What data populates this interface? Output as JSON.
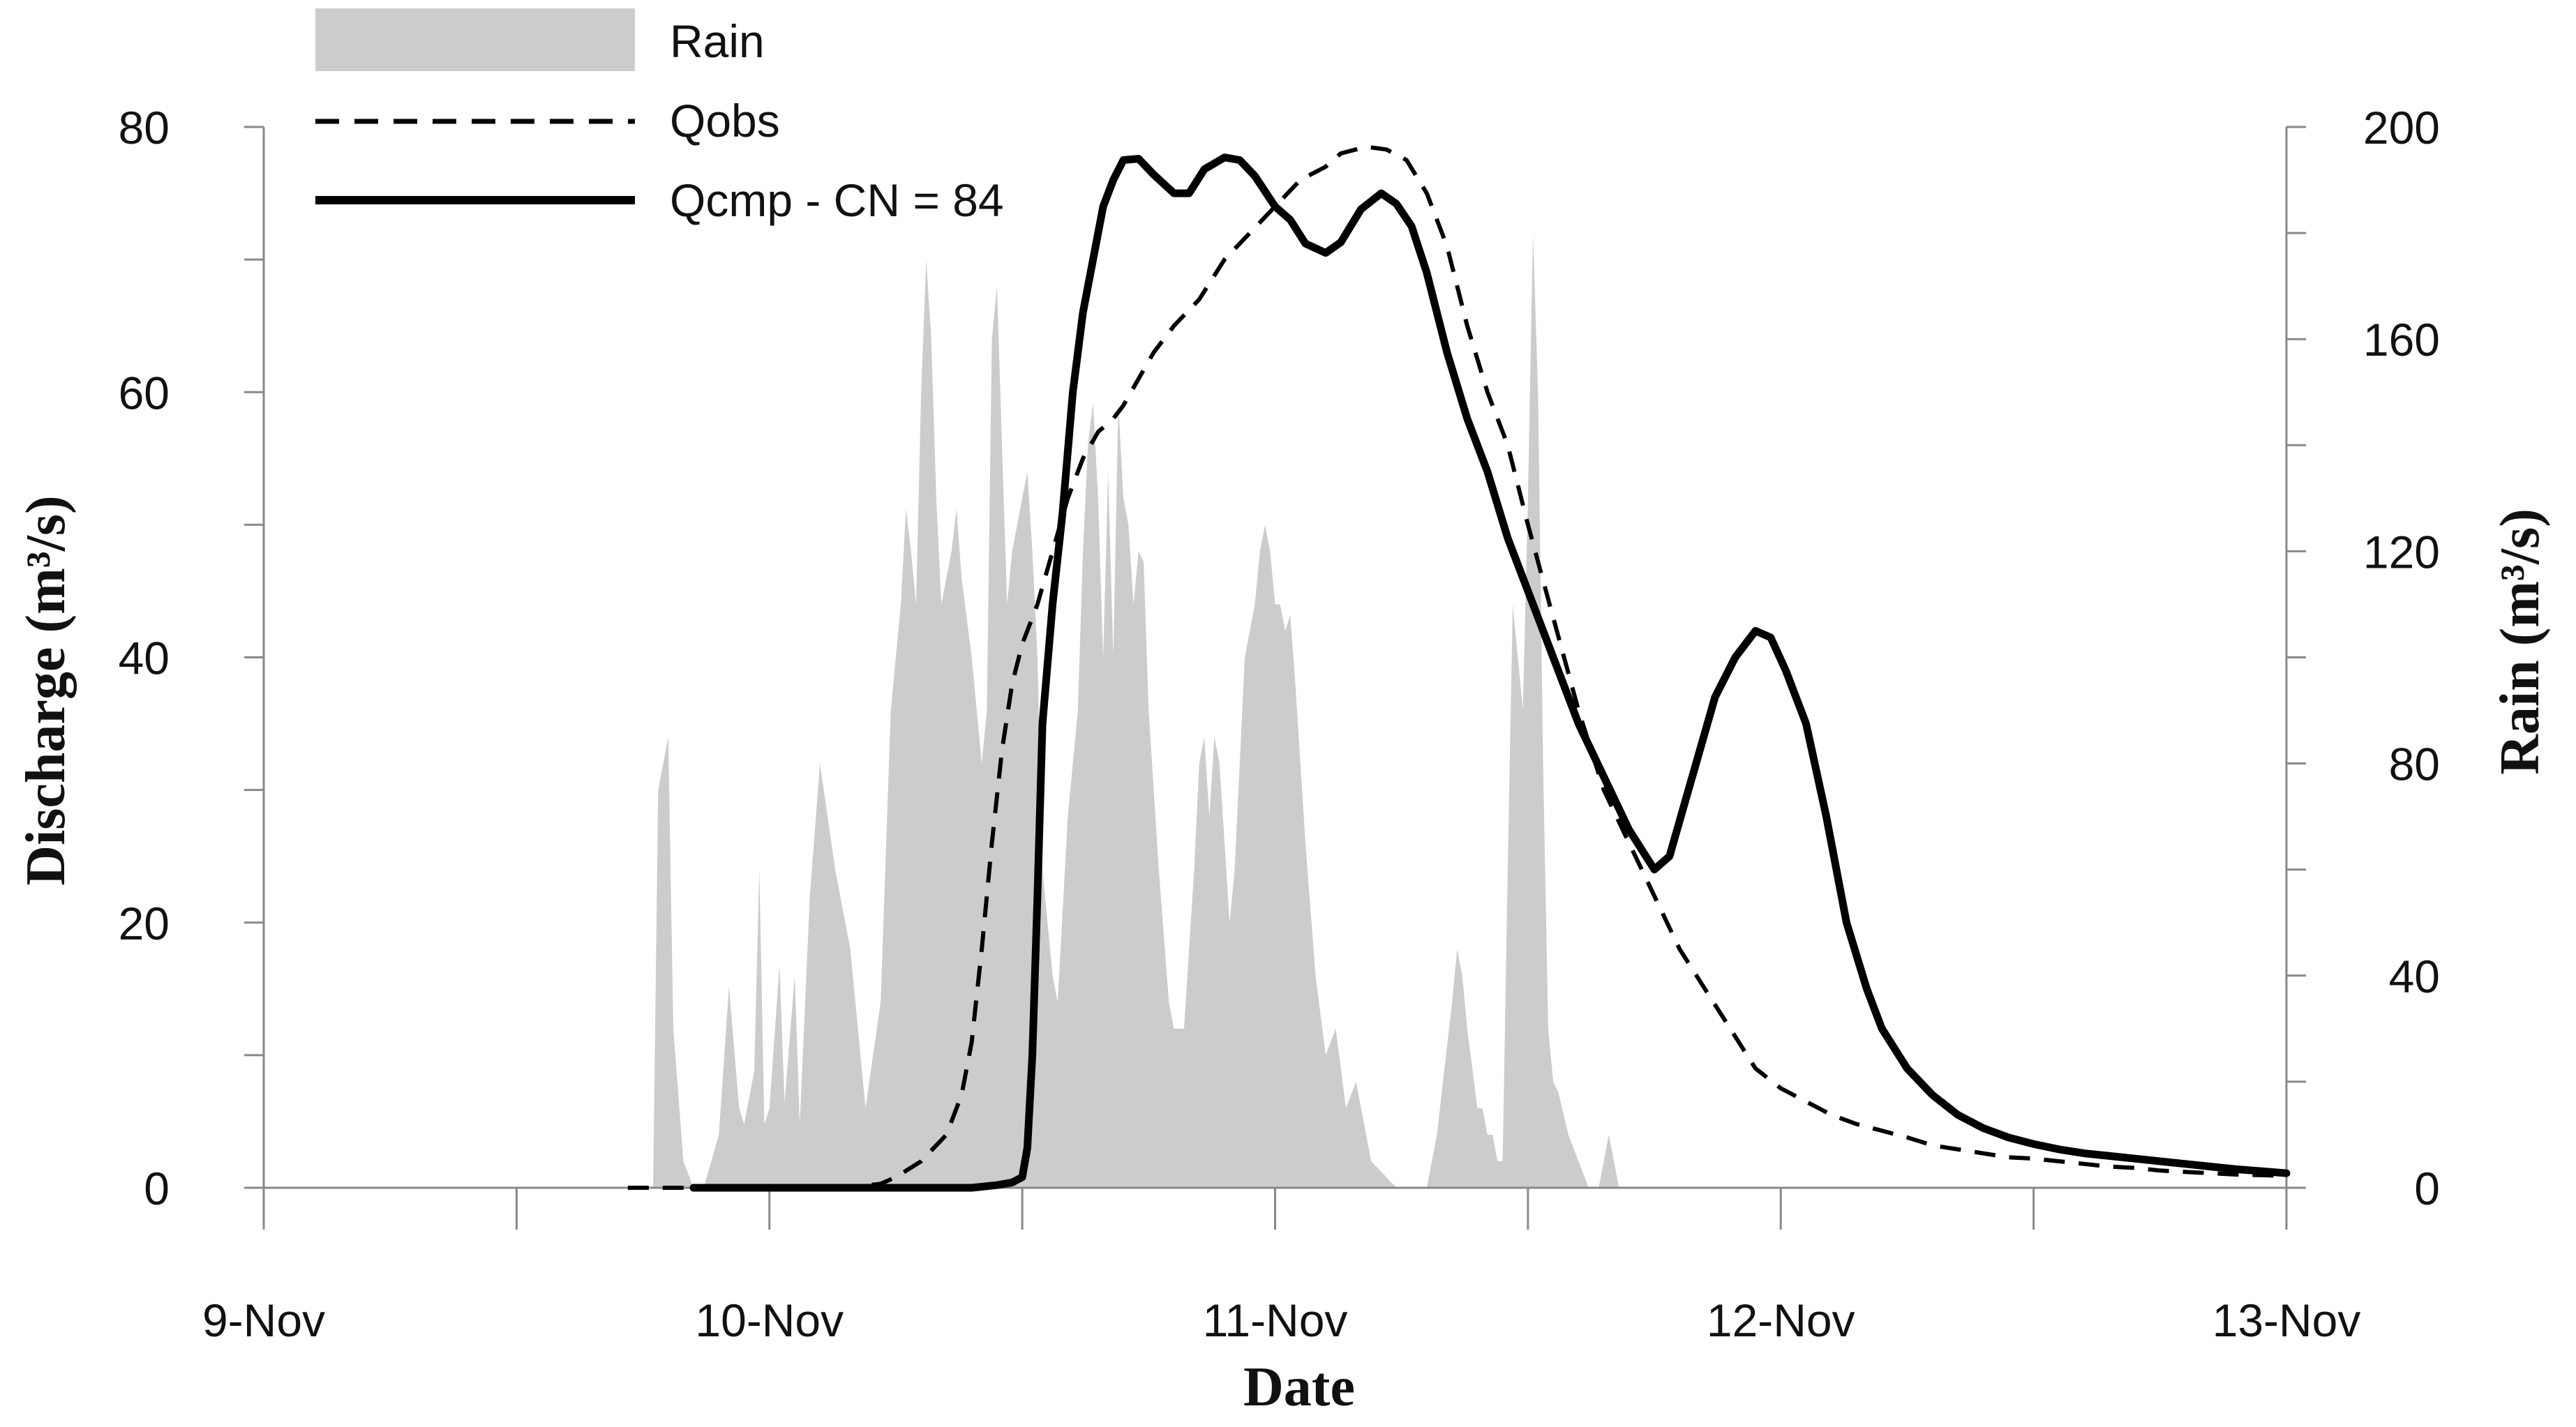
{
  "chart_data": {
    "type": "line",
    "xlabel": "Date",
    "ylabel": "Discharge",
    "ylabel_unit": "(m³/s)",
    "y2label": "Rain",
    "y2label_unit": "(m³/s)",
    "x_ticks": [
      {
        "value": 0,
        "label": "9-Nov"
      },
      {
        "value": 1,
        "label": "10-Nov"
      },
      {
        "value": 2,
        "label": "11-Nov"
      },
      {
        "value": 3,
        "label": "12-Nov"
      },
      {
        "value": 4,
        "label": "13-Nov"
      }
    ],
    "xlim": [
      0,
      4
    ],
    "ylim": [
      0,
      80
    ],
    "y_ticks": [
      0,
      20,
      40,
      60,
      80
    ],
    "y2lim": [
      0,
      200
    ],
    "y2_ticks": [
      0,
      40,
      80,
      120,
      160,
      200
    ],
    "legend_position": "top-left",
    "colors": {
      "rain": "#cccccc",
      "qobs": "#000000",
      "qcmp": "#000000"
    },
    "series": [
      {
        "name": "Rain",
        "kind": "area",
        "axis": "right",
        "points": [
          [
            0.77,
            0
          ],
          [
            0.78,
            75
          ],
          [
            0.8,
            85
          ],
          [
            0.81,
            30
          ],
          [
            0.83,
            5
          ],
          [
            0.85,
            0
          ],
          [
            0.87,
            0
          ],
          [
            0.9,
            10
          ],
          [
            0.92,
            38
          ],
          [
            0.94,
            15
          ],
          [
            0.95,
            12
          ],
          [
            0.97,
            22
          ],
          [
            0.98,
            60
          ],
          [
            0.99,
            12
          ],
          [
            1.0,
            15
          ],
          [
            1.02,
            42
          ],
          [
            1.03,
            16
          ],
          [
            1.05,
            40
          ],
          [
            1.06,
            12
          ],
          [
            1.08,
            55
          ],
          [
            1.1,
            80
          ],
          [
            1.13,
            60
          ],
          [
            1.16,
            45
          ],
          [
            1.19,
            15
          ],
          [
            1.22,
            35
          ],
          [
            1.24,
            90
          ],
          [
            1.26,
            110
          ],
          [
            1.27,
            128
          ],
          [
            1.28,
            120
          ],
          [
            1.29,
            110
          ],
          [
            1.3,
            150
          ],
          [
            1.31,
            175
          ],
          [
            1.32,
            160
          ],
          [
            1.33,
            130
          ],
          [
            1.34,
            110
          ],
          [
            1.35,
            115
          ],
          [
            1.36,
            120
          ],
          [
            1.37,
            128
          ],
          [
            1.38,
            115
          ],
          [
            1.4,
            100
          ],
          [
            1.42,
            80
          ],
          [
            1.43,
            90
          ],
          [
            1.44,
            160
          ],
          [
            1.45,
            170
          ],
          [
            1.46,
            140
          ],
          [
            1.47,
            110
          ],
          [
            1.48,
            120
          ],
          [
            1.5,
            130
          ],
          [
            1.51,
            135
          ],
          [
            1.52,
            120
          ],
          [
            1.53,
            100
          ],
          [
            1.54,
            60
          ],
          [
            1.56,
            40
          ],
          [
            1.57,
            35
          ],
          [
            1.59,
            70
          ],
          [
            1.6,
            80
          ],
          [
            1.61,
            90
          ],
          [
            1.62,
            120
          ],
          [
            1.63,
            140
          ],
          [
            1.64,
            148
          ],
          [
            1.65,
            130
          ],
          [
            1.66,
            100
          ],
          [
            1.67,
            135
          ],
          [
            1.68,
            100
          ],
          [
            1.69,
            148
          ],
          [
            1.7,
            130
          ],
          [
            1.71,
            125
          ],
          [
            1.72,
            110
          ],
          [
            1.73,
            120
          ],
          [
            1.74,
            118
          ],
          [
            1.75,
            90
          ],
          [
            1.77,
            60
          ],
          [
            1.79,
            35
          ],
          [
            1.8,
            30
          ],
          [
            1.82,
            30
          ],
          [
            1.84,
            60
          ],
          [
            1.85,
            80
          ],
          [
            1.86,
            85
          ],
          [
            1.87,
            70
          ],
          [
            1.88,
            85
          ],
          [
            1.89,
            80
          ],
          [
            1.91,
            50
          ],
          [
            1.92,
            60
          ],
          [
            1.93,
            80
          ],
          [
            1.94,
            100
          ],
          [
            1.96,
            110
          ],
          [
            1.97,
            120
          ],
          [
            1.98,
            125
          ],
          [
            1.99,
            120
          ],
          [
            2.0,
            110
          ],
          [
            2.01,
            110
          ],
          [
            2.02,
            105
          ],
          [
            2.03,
            108
          ],
          [
            2.04,
            95
          ],
          [
            2.06,
            65
          ],
          [
            2.08,
            40
          ],
          [
            2.1,
            25
          ],
          [
            2.12,
            30
          ],
          [
            2.14,
            15
          ],
          [
            2.16,
            20
          ],
          [
            2.17,
            15
          ],
          [
            2.18,
            10
          ],
          [
            2.19,
            5
          ],
          [
            2.21,
            3
          ],
          [
            2.22,
            2
          ],
          [
            2.24,
            0
          ],
          [
            2.26,
            0
          ],
          [
            2.29,
            0
          ],
          [
            2.3,
            0
          ],
          [
            2.32,
            10
          ],
          [
            2.35,
            35
          ],
          [
            2.36,
            45
          ],
          [
            2.37,
            40
          ],
          [
            2.38,
            30
          ],
          [
            2.4,
            15
          ],
          [
            2.41,
            15
          ],
          [
            2.42,
            10
          ],
          [
            2.43,
            10
          ],
          [
            2.44,
            5
          ],
          [
            2.45,
            5
          ],
          [
            2.46,
            60
          ],
          [
            2.47,
            110
          ],
          [
            2.48,
            100
          ],
          [
            2.49,
            90
          ],
          [
            2.5,
            130
          ],
          [
            2.51,
            180
          ],
          [
            2.52,
            150
          ],
          [
            2.53,
            80
          ],
          [
            2.54,
            30
          ],
          [
            2.55,
            20
          ],
          [
            2.56,
            18
          ],
          [
            2.58,
            10
          ],
          [
            2.6,
            5
          ],
          [
            2.62,
            0
          ],
          [
            2.64,
            0
          ],
          [
            2.65,
            5
          ],
          [
            2.66,
            10
          ],
          [
            2.67,
            5
          ],
          [
            2.68,
            0
          ],
          [
            2.69,
            0
          ]
        ]
      },
      {
        "name": "Qobs",
        "kind": "line",
        "dash": "dashed",
        "axis": "left",
        "points": [
          [
            0.72,
            0
          ],
          [
            0.76,
            0
          ],
          [
            0.8,
            0
          ],
          [
            0.9,
            0
          ],
          [
            1.0,
            0
          ],
          [
            1.1,
            0
          ],
          [
            1.15,
            0
          ],
          [
            1.22,
            0.3
          ],
          [
            1.25,
            0.8
          ],
          [
            1.3,
            2
          ],
          [
            1.35,
            4
          ],
          [
            1.38,
            7
          ],
          [
            1.4,
            11
          ],
          [
            1.42,
            18
          ],
          [
            1.44,
            26
          ],
          [
            1.46,
            33
          ],
          [
            1.48,
            38
          ],
          [
            1.5,
            41
          ],
          [
            1.53,
            44
          ],
          [
            1.56,
            48
          ],
          [
            1.59,
            52
          ],
          [
            1.62,
            55
          ],
          [
            1.65,
            57
          ],
          [
            1.68,
            58
          ],
          [
            1.7,
            59
          ],
          [
            1.73,
            61
          ],
          [
            1.76,
            63
          ],
          [
            1.8,
            65
          ],
          [
            1.85,
            67
          ],
          [
            1.9,
            70
          ],
          [
            1.95,
            72
          ],
          [
            2.0,
            74
          ],
          [
            2.05,
            76
          ],
          [
            2.1,
            77
          ],
          [
            2.13,
            78
          ],
          [
            2.18,
            78.5
          ],
          [
            2.22,
            78.3
          ],
          [
            2.26,
            77.5
          ],
          [
            2.3,
            75
          ],
          [
            2.34,
            71
          ],
          [
            2.38,
            65
          ],
          [
            2.42,
            60
          ],
          [
            2.46,
            56
          ],
          [
            2.5,
            50
          ],
          [
            2.55,
            43
          ],
          [
            2.6,
            36
          ],
          [
            2.65,
            30
          ],
          [
            2.7,
            26
          ],
          [
            2.75,
            22
          ],
          [
            2.8,
            18
          ],
          [
            2.85,
            15
          ],
          [
            2.9,
            12
          ],
          [
            2.95,
            9
          ],
          [
            3.0,
            7.5
          ],
          [
            3.05,
            6.5
          ],
          [
            3.1,
            5.5
          ],
          [
            3.15,
            4.8
          ],
          [
            3.2,
            4.3
          ],
          [
            3.25,
            3.8
          ],
          [
            3.3,
            3.2
          ],
          [
            3.35,
            2.9
          ],
          [
            3.4,
            2.6
          ],
          [
            3.45,
            2.3
          ],
          [
            3.5,
            2.2
          ],
          [
            3.55,
            2.0
          ],
          [
            3.6,
            1.8
          ],
          [
            3.65,
            1.6
          ],
          [
            3.7,
            1.5
          ],
          [
            3.75,
            1.3
          ],
          [
            3.8,
            1.2
          ],
          [
            3.85,
            1.1
          ],
          [
            3.9,
            1.0
          ],
          [
            4.0,
            0.9
          ]
        ]
      },
      {
        "name": "Qcmp - CN = 84",
        "kind": "line",
        "dash": "solid",
        "axis": "left",
        "points": [
          [
            0.85,
            0
          ],
          [
            0.9,
            0
          ],
          [
            1.0,
            0
          ],
          [
            1.1,
            0
          ],
          [
            1.2,
            0
          ],
          [
            1.3,
            0
          ],
          [
            1.4,
            0
          ],
          [
            1.45,
            0.2
          ],
          [
            1.48,
            0.4
          ],
          [
            1.5,
            0.8
          ],
          [
            1.51,
            3
          ],
          [
            1.52,
            10
          ],
          [
            1.53,
            22
          ],
          [
            1.54,
            35
          ],
          [
            1.56,
            44
          ],
          [
            1.58,
            51
          ],
          [
            1.6,
            60
          ],
          [
            1.62,
            66
          ],
          [
            1.64,
            70
          ],
          [
            1.66,
            74
          ],
          [
            1.68,
            76
          ],
          [
            1.7,
            77.5
          ],
          [
            1.73,
            77.6
          ],
          [
            1.76,
            76.4
          ],
          [
            1.8,
            75
          ],
          [
            1.83,
            75
          ],
          [
            1.86,
            76.8
          ],
          [
            1.9,
            77.7
          ],
          [
            1.93,
            77.5
          ],
          [
            1.96,
            76.3
          ],
          [
            2.0,
            74
          ],
          [
            2.03,
            73
          ],
          [
            2.06,
            71.2
          ],
          [
            2.1,
            70.5
          ],
          [
            2.13,
            71.3
          ],
          [
            2.17,
            73.8
          ],
          [
            2.21,
            75
          ],
          [
            2.24,
            74.2
          ],
          [
            2.27,
            72.5
          ],
          [
            2.3,
            69
          ],
          [
            2.34,
            63
          ],
          [
            2.38,
            58
          ],
          [
            2.42,
            54
          ],
          [
            2.46,
            49
          ],
          [
            2.5,
            45
          ],
          [
            2.55,
            40
          ],
          [
            2.6,
            35
          ],
          [
            2.65,
            31
          ],
          [
            2.7,
            27
          ],
          [
            2.75,
            24
          ],
          [
            2.78,
            25
          ],
          [
            2.81,
            29
          ],
          [
            2.84,
            33
          ],
          [
            2.87,
            37
          ],
          [
            2.91,
            40
          ],
          [
            2.95,
            42
          ],
          [
            2.98,
            41.5
          ],
          [
            3.01,
            39
          ],
          [
            3.05,
            35
          ],
          [
            3.09,
            28
          ],
          [
            3.13,
            20
          ],
          [
            3.17,
            15
          ],
          [
            3.2,
            12
          ],
          [
            3.25,
            9
          ],
          [
            3.3,
            7
          ],
          [
            3.35,
            5.5
          ],
          [
            3.4,
            4.5
          ],
          [
            3.45,
            3.8
          ],
          [
            3.5,
            3.3
          ],
          [
            3.55,
            2.9
          ],
          [
            3.6,
            2.6
          ],
          [
            3.65,
            2.4
          ],
          [
            3.7,
            2.2
          ],
          [
            3.75,
            2.0
          ],
          [
            3.8,
            1.8
          ],
          [
            3.85,
            1.6
          ],
          [
            3.9,
            1.4
          ],
          [
            3.95,
            1.25
          ],
          [
            4.0,
            1.1
          ]
        ]
      }
    ]
  }
}
